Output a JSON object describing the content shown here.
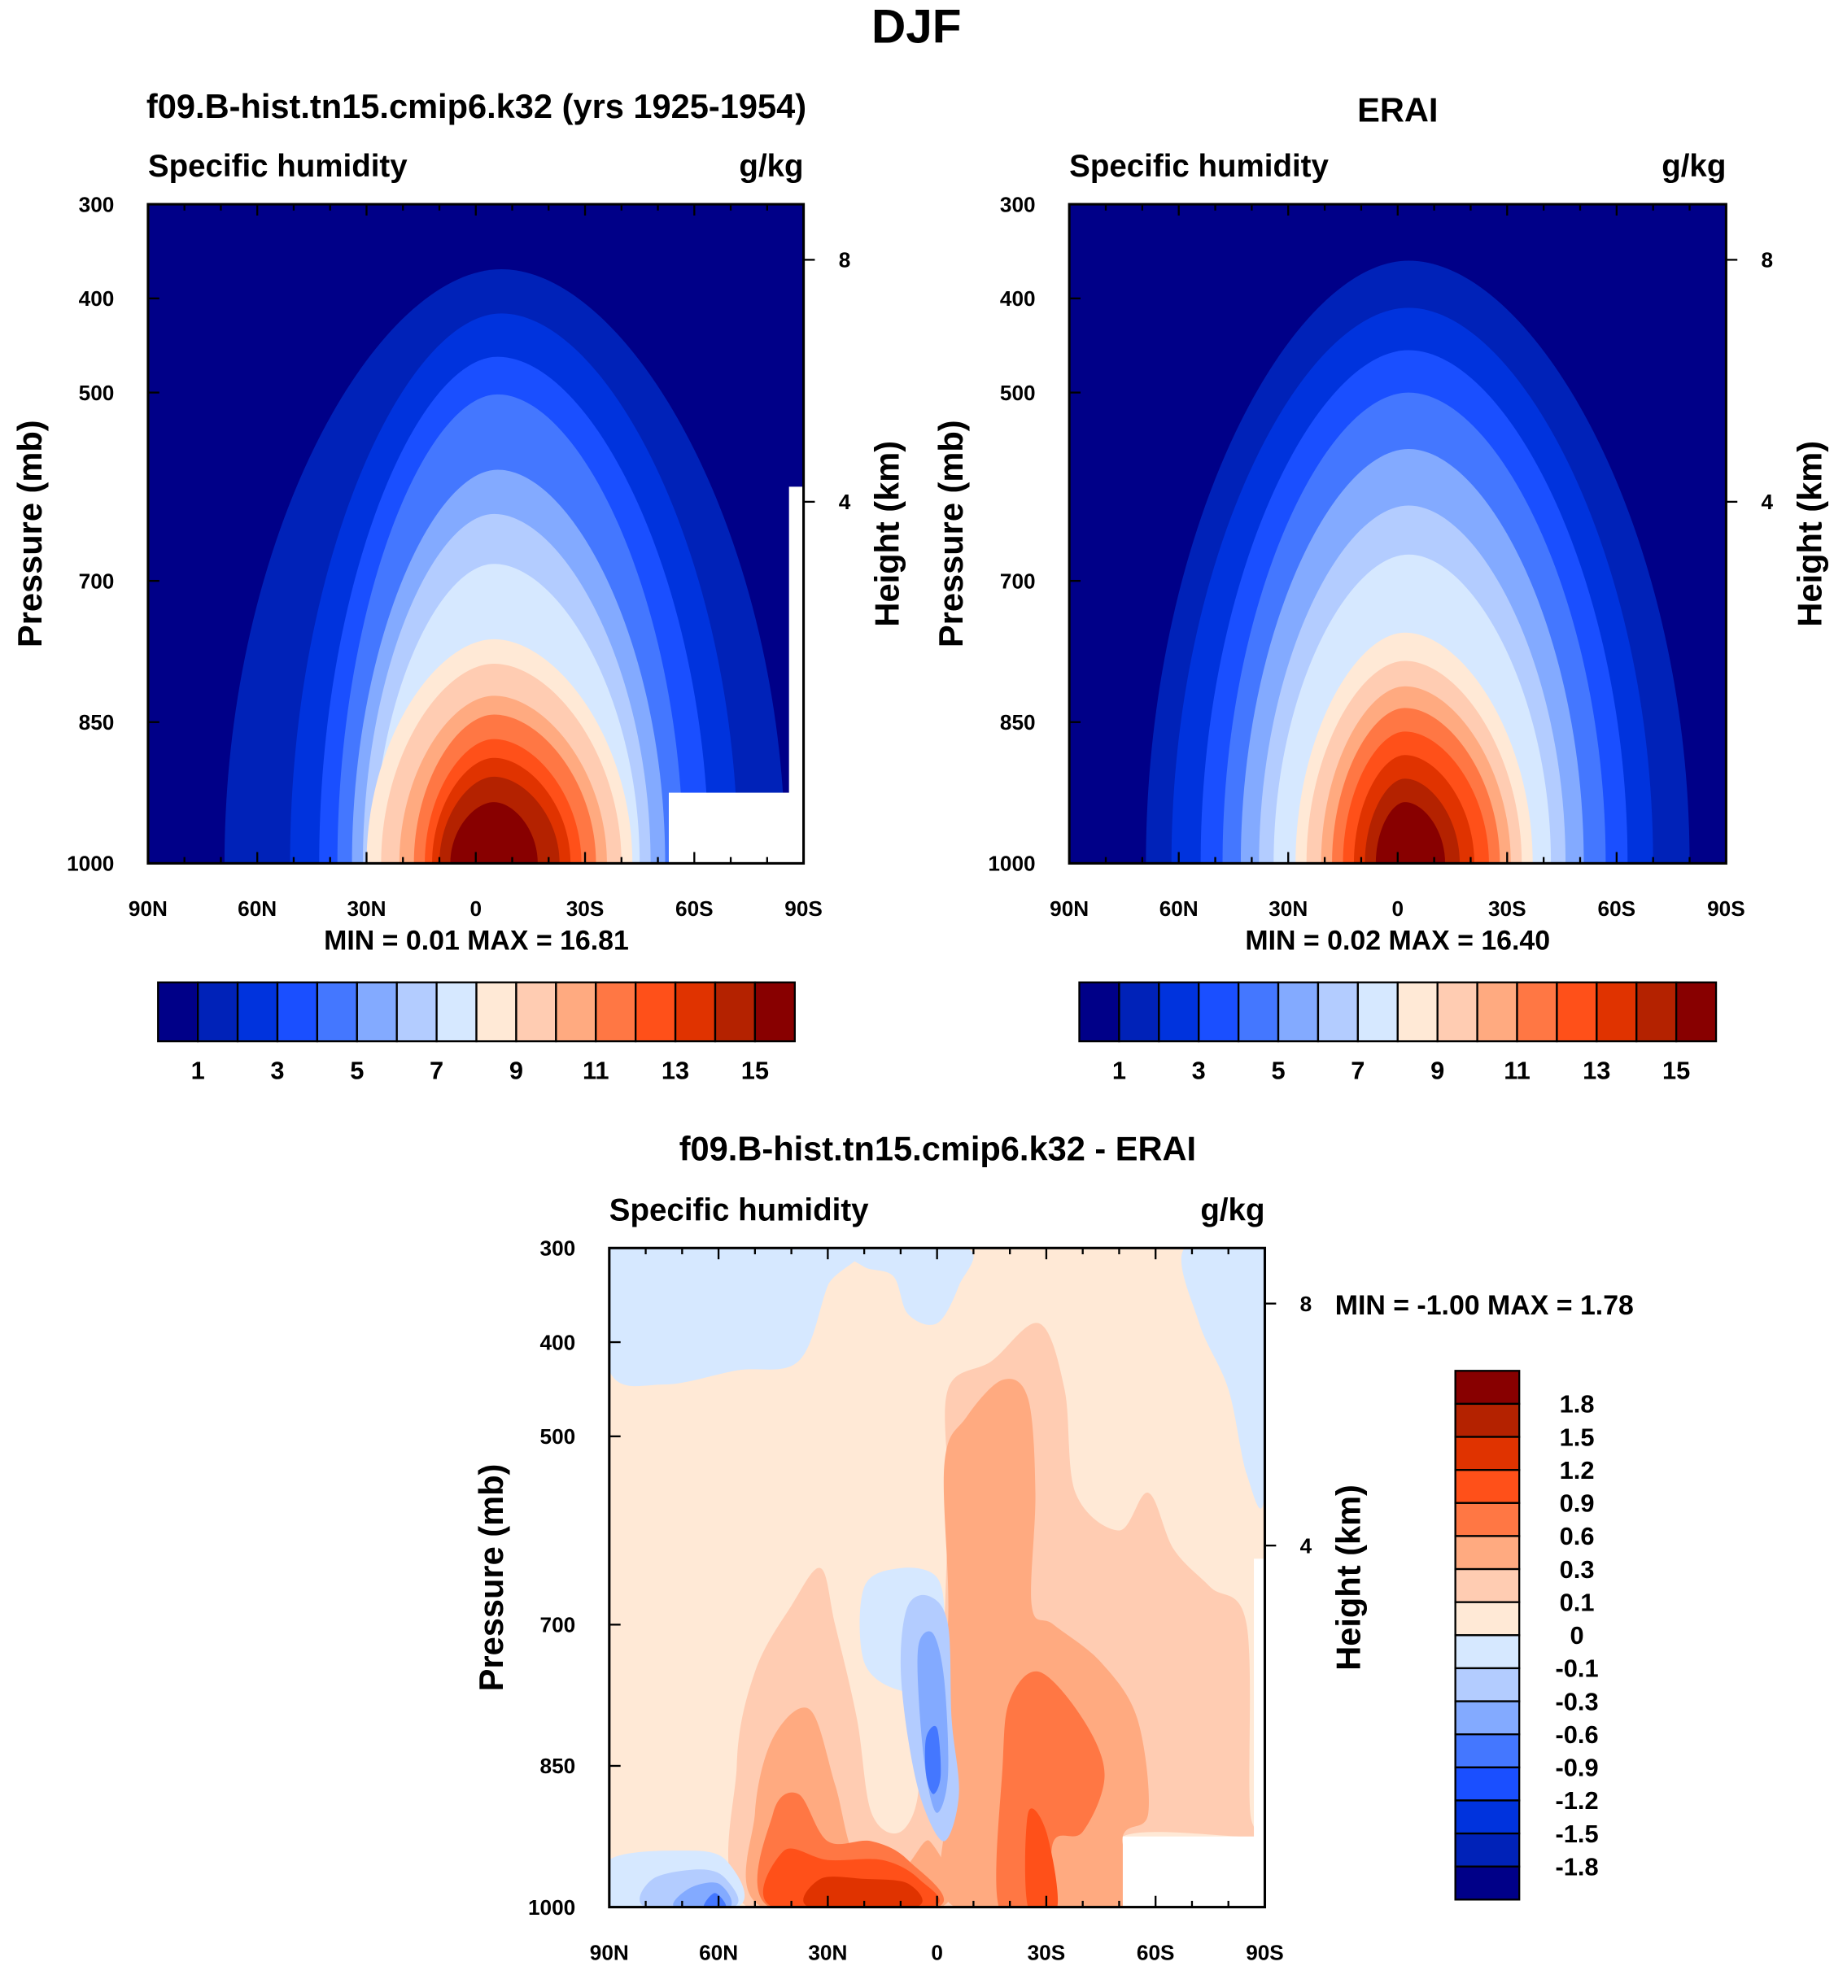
{
  "main_title": "DJF",
  "colors_abs": [
    "#000088",
    "#0022b8",
    "#0033dd",
    "#1a4fff",
    "#4477ff",
    "#83aaff",
    "#b3ccff",
    "#d6e8ff",
    "#ffe9d6",
    "#ffccb2",
    "#ffaa80",
    "#ff7744",
    "#ff5019",
    "#e03300",
    "#b42200",
    "#880000"
  ],
  "colors_diff": [
    "#000088",
    "#0022b8",
    "#0033dd",
    "#1a4fff",
    "#4477ff",
    "#83aaff",
    "#b3ccff",
    "#d6e8ff",
    "#ffe9d6",
    "#ffccb2",
    "#ffaa80",
    "#ff7744",
    "#ff5019",
    "#e03300",
    "#b42200",
    "#880000"
  ],
  "chart_data": [
    {
      "type": "heatmap",
      "title": "f09.B-hist.tn15.cmip6.k32 (yrs 1925-1954)",
      "left_string": "Specific humidity",
      "right_string": "g/kg",
      "ylabel": "Pressure (mb)",
      "ylabel_right": "Height (km)",
      "minmax": "MIN =   0.01  MAX =  16.81",
      "x_ticks": [
        "90N",
        "60N",
        "30N",
        "0",
        "30S",
        "60S",
        "90S"
      ],
      "y_ticks": [
        "300",
        "400",
        "500",
        "700",
        "850",
        "1000"
      ],
      "height_ticks": [
        {
          "label": "8",
          "p": 359
        },
        {
          "label": "4",
          "p": 616
        }
      ],
      "xlim": [
        90,
        -90
      ],
      "ylim": [
        300,
        1000
      ],
      "levels": [
        "1",
        "3",
        "5",
        "7",
        "9",
        "11",
        "13",
        "15"
      ],
      "contours": [
        [
          69,
          -85,
          369,
          -7
        ],
        [
          51,
          -72,
          416,
          -7
        ],
        [
          43,
          -64,
          462,
          -6
        ],
        [
          38,
          -57,
          502,
          -6
        ],
        [
          34,
          -52,
          582,
          -6
        ],
        [
          31,
          -48,
          629,
          -5
        ],
        [
          28,
          -45,
          682,
          -5
        ],
        [
          30,
          -43,
          762,
          -5
        ],
        [
          26,
          -40,
          788,
          -5
        ],
        [
          21,
          -36,
          822,
          -5
        ],
        [
          17,
          -33,
          842,
          -5
        ],
        [
          14,
          -29,
          868,
          -5
        ],
        [
          12,
          -26,
          888,
          -5
        ],
        [
          10,
          -23,
          908,
          -5
        ],
        [
          7,
          -17,
          935,
          -5
        ]
      ],
      "missing": [
        [
          -53,
          -90,
          925,
          1000
        ],
        [
          -86,
          -90,
          600,
          925
        ]
      ]
    },
    {
      "type": "heatmap",
      "title": "ERAI",
      "left_string": "Specific humidity",
      "right_string": "g/kg",
      "ylabel": "Pressure (mb)",
      "ylabel_right": "Height (km)",
      "minmax": "MIN =   0.02  MAX =  16.40",
      "x_ticks": [
        "90N",
        "60N",
        "30N",
        "0",
        "30S",
        "60S",
        "90S"
      ],
      "y_ticks": [
        "300",
        "400",
        "500",
        "700",
        "850",
        "1000"
      ],
      "height_ticks": [
        {
          "label": "8",
          "p": 359
        },
        {
          "label": "4",
          "p": 616
        }
      ],
      "xlim": [
        90,
        -90
      ],
      "ylim": [
        300,
        1000
      ],
      "levels": [
        "1",
        "3",
        "5",
        "7",
        "9",
        "11",
        "13",
        "15"
      ],
      "contours": [
        [
          69,
          -80,
          360,
          -3
        ],
        [
          62,
          -70,
          410,
          -3
        ],
        [
          54,
          -63,
          455,
          -3
        ],
        [
          48,
          -57,
          500,
          -3
        ],
        [
          43,
          -51,
          560,
          -3
        ],
        [
          38,
          -46,
          620,
          -3
        ],
        [
          34,
          -42,
          672,
          -3
        ],
        [
          28,
          -37,
          755,
          -2
        ],
        [
          25,
          -34,
          785,
          -2
        ],
        [
          21,
          -31,
          812,
          -2
        ],
        [
          18,
          -28,
          835,
          -2
        ],
        [
          15,
          -25,
          860,
          -2
        ],
        [
          12,
          -21,
          885,
          -2
        ],
        [
          9,
          -17,
          910,
          -2
        ],
        [
          6,
          -13,
          935,
          -2
        ]
      ],
      "missing": []
    },
    {
      "type": "heatmap",
      "title": "f09.B-hist.tn15.cmip6.k32 - ERAI",
      "left_string": "Specific humidity",
      "right_string": "g/kg",
      "ylabel": "Pressure (mb)",
      "ylabel_right": "Height (km)",
      "minmax": "MIN =  -1.00  MAX =   1.78",
      "x_ticks": [
        "90N",
        "60N",
        "30N",
        "0",
        "30S",
        "60S",
        "90S"
      ],
      "y_ticks": [
        "300",
        "400",
        "500",
        "700",
        "850",
        "1000"
      ],
      "height_ticks": [
        {
          "label": "8",
          "p": 359
        },
        {
          "label": "4",
          "p": 616
        }
      ],
      "xlim": [
        90,
        -90
      ],
      "ylim": [
        300,
        1000
      ],
      "levels": [
        "1.8",
        "1.5",
        "1.2",
        "0.9",
        "0.6",
        "0.3",
        "0.1",
        "0",
        "-0.1",
        "-0.3",
        "-0.6",
        "-0.9",
        "-1.2",
        "-1.5",
        "-1.8"
      ],
      "background": 8,
      "blobs": [
        {
          "c": 7,
          "pts": [
            [
              90,
              300
            ],
            [
              25,
              300
            ],
            [
              30,
              340
            ],
            [
              38,
              420
            ],
            [
              55,
              430
            ],
            [
              75,
              445
            ],
            [
              90,
              430
            ]
          ]
        },
        {
          "c": 7,
          "pts": [
            [
              24,
              300
            ],
            [
              -8,
              300
            ],
            [
              -6,
              340
            ],
            [
              0,
              380
            ],
            [
              8,
              370
            ],
            [
              12,
              330
            ],
            [
              20,
              320
            ]
          ]
        },
        {
          "c": 7,
          "pts": [
            [
              -68,
              300
            ],
            [
              -90,
              300
            ],
            [
              -90,
              560
            ],
            [
              -85,
              540
            ],
            [
              -80,
              450
            ],
            [
              -72,
              380
            ]
          ]
        },
        {
          "c": 9,
          "pts": [
            [
              -3,
              450
            ],
            [
              -15,
              420
            ],
            [
              -28,
              380
            ],
            [
              -35,
              450
            ],
            [
              -38,
              560
            ],
            [
              -50,
              600
            ],
            [
              -58,
              560
            ],
            [
              -65,
              620
            ],
            [
              -75,
              660
            ],
            [
              -85,
              700
            ],
            [
              -86,
              900
            ],
            [
              -90,
              925
            ],
            [
              -51,
              925
            ],
            [
              -51,
              1000
            ],
            [
              -2,
              1000
            ],
            [
              -5,
              900
            ],
            [
              0,
              820
            ],
            [
              -2,
              700
            ],
            [
              -3,
              560
            ]
          ]
        },
        {
          "c": 9,
          "pts": [
            [
              52,
              1000
            ],
            [
              55,
              850
            ],
            [
              50,
              750
            ],
            [
              40,
              680
            ],
            [
              32,
              640
            ],
            [
              28,
              700
            ],
            [
              22,
              800
            ],
            [
              18,
              900
            ],
            [
              10,
              920
            ],
            [
              5,
              870
            ],
            [
              8,
              750
            ],
            [
              2,
              700
            ],
            [
              -2,
              800
            ],
            [
              -3,
              1000
            ]
          ]
        },
        {
          "c": 10,
          "pts": [
            [
              -2,
              530
            ],
            [
              -8,
              480
            ],
            [
              -18,
              440
            ],
            [
              -25,
              460
            ],
            [
              -27,
              560
            ],
            [
              -26,
              680
            ],
            [
              -32,
              700
            ],
            [
              -45,
              740
            ],
            [
              -55,
              800
            ],
            [
              -58,
              900
            ],
            [
              -51,
              925
            ],
            [
              -51,
              1000
            ],
            [
              -5,
              1000
            ],
            [
              -2,
              900
            ],
            [
              2,
              830
            ],
            [
              -3,
              700
            ]
          ]
        },
        {
          "c": 10,
          "pts": [
            [
              48,
              1000
            ],
            [
              50,
              900
            ],
            [
              45,
              820
            ],
            [
              35,
              790
            ],
            [
              28,
              870
            ],
            [
              22,
              950
            ],
            [
              10,
              960
            ],
            [
              2,
              930
            ],
            [
              -1,
              1000
            ]
          ]
        },
        {
          "c": 11,
          "pts": [
            [
              -17,
              1000
            ],
            [
              -18,
              850
            ],
            [
              -20,
              780
            ],
            [
              -28,
              750
            ],
            [
              -40,
              800
            ],
            [
              -46,
              860
            ],
            [
              -40,
              920
            ],
            [
              -32,
              930
            ],
            [
              -30,
              1000
            ]
          ]
        },
        {
          "c": 11,
          "pts": [
            [
              46,
              1000
            ],
            [
              45,
              900
            ],
            [
              38,
              880
            ],
            [
              30,
              930
            ],
            [
              18,
              930
            ],
            [
              8,
              950
            ],
            [
              0,
              1000
            ]
          ]
        },
        {
          "c": 12,
          "pts": [
            [
              45,
              1000
            ],
            [
              42,
              940
            ],
            [
              30,
              950
            ],
            [
              15,
              950
            ],
            [
              5,
              970
            ],
            [
              2,
              1000
            ]
          ]
        },
        {
          "c": 12,
          "pts": [
            [
              -25,
              1000
            ],
            [
              -25,
              900
            ],
            [
              -30,
              920
            ],
            [
              -33,
              1000
            ]
          ]
        },
        {
          "c": 13,
          "pts": [
            [
              35,
              1000
            ],
            [
              32,
              970
            ],
            [
              20,
              970
            ],
            [
              8,
              975
            ],
            [
              6,
              1000
            ]
          ]
        },
        {
          "c": 7,
          "pts": [
            [
              20,
              660
            ],
            [
              10,
              640
            ],
            [
              0,
              650
            ],
            [
              -2,
              700
            ],
            [
              0,
              760
            ],
            [
              10,
              770
            ],
            [
              20,
              740
            ]
          ]
        },
        {
          "c": 6,
          "pts": [
            [
              8,
              680
            ],
            [
              2,
              670
            ],
            [
              -3,
              700
            ],
            [
              -4,
              800
            ],
            [
              -6,
              880
            ],
            [
              -2,
              930
            ],
            [
              4,
              890
            ],
            [
              8,
              820
            ],
            [
              10,
              740
            ]
          ]
        },
        {
          "c": 5,
          "pts": [
            [
              5,
              720
            ],
            [
              1,
              710
            ],
            [
              -2,
              760
            ],
            [
              -3,
              860
            ],
            [
              0,
              900
            ],
            [
              3,
              860
            ],
            [
              5,
              780
            ]
          ]
        },
        {
          "c": 4,
          "pts": [
            [
              3,
              820
            ],
            [
              0,
              810
            ],
            [
              -1,
              860
            ],
            [
              1,
              880
            ],
            [
              3,
              860
            ]
          ]
        },
        {
          "c": 7,
          "pts": [
            [
              90,
              950
            ],
            [
              70,
              940
            ],
            [
              58,
              950
            ],
            [
              55,
              1000
            ],
            [
              90,
              1000
            ]
          ]
        },
        {
          "c": 6,
          "pts": [
            [
              80,
              1000
            ],
            [
              78,
              970
            ],
            [
              65,
              960
            ],
            [
              58,
              970
            ],
            [
              56,
              1000
            ]
          ]
        },
        {
          "c": 5,
          "pts": [
            [
              72,
              1000
            ],
            [
              68,
              980
            ],
            [
              60,
              975
            ],
            [
              57,
              1000
            ]
          ]
        },
        {
          "c": 4,
          "pts": [
            [
              64,
              1000
            ],
            [
              61,
              985
            ],
            [
              58,
              1000
            ]
          ]
        }
      ],
      "missing": [
        [
          -51,
          -90,
          925,
          1000
        ],
        [
          -87,
          -90,
          630,
          925
        ]
      ]
    }
  ]
}
